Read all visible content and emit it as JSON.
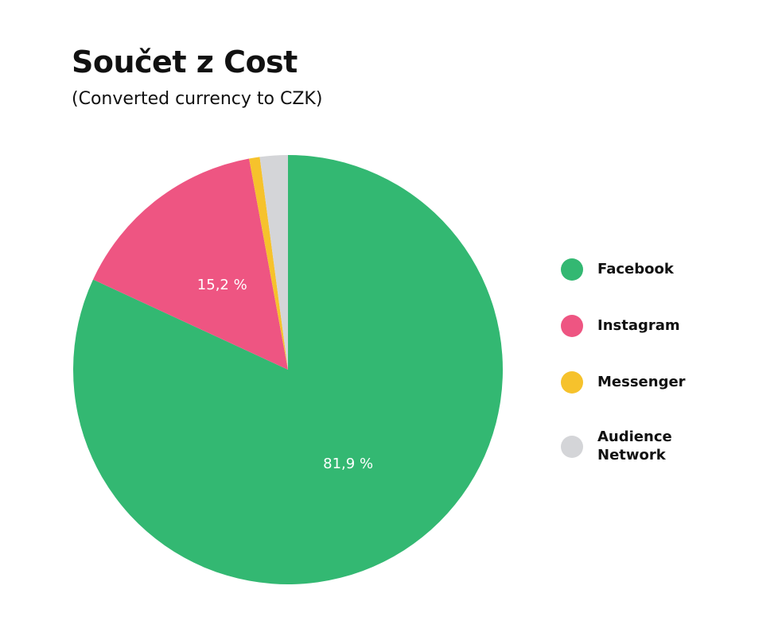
{
  "title": "Součet z Cost",
  "subtitle": "(Converted currency to CZK)",
  "chart_data": {
    "type": "pie",
    "slices": [
      {
        "name": "Facebook",
        "value": 81.9,
        "label": "81,9 %",
        "color": "#33b872"
      },
      {
        "name": "Instagram",
        "value": 15.2,
        "label": "15,2 %",
        "color": "#ee5582"
      },
      {
        "name": "Messenger",
        "value": 0.8,
        "label": "",
        "color": "#f6c22c"
      },
      {
        "name": "Audience Network",
        "value": 2.1,
        "label": "",
        "color": "#d4d5d8"
      }
    ],
    "legend_position": "right",
    "start_angle": "top",
    "direction": "clockwise"
  },
  "legend": [
    {
      "label": "Facebook",
      "color": "#33b872"
    },
    {
      "label": "Instagram",
      "color": "#ee5582"
    },
    {
      "label": "Messenger",
      "color": "#f6c22c"
    },
    {
      "label": "Audience Network",
      "color": "#d4d5d8"
    }
  ]
}
